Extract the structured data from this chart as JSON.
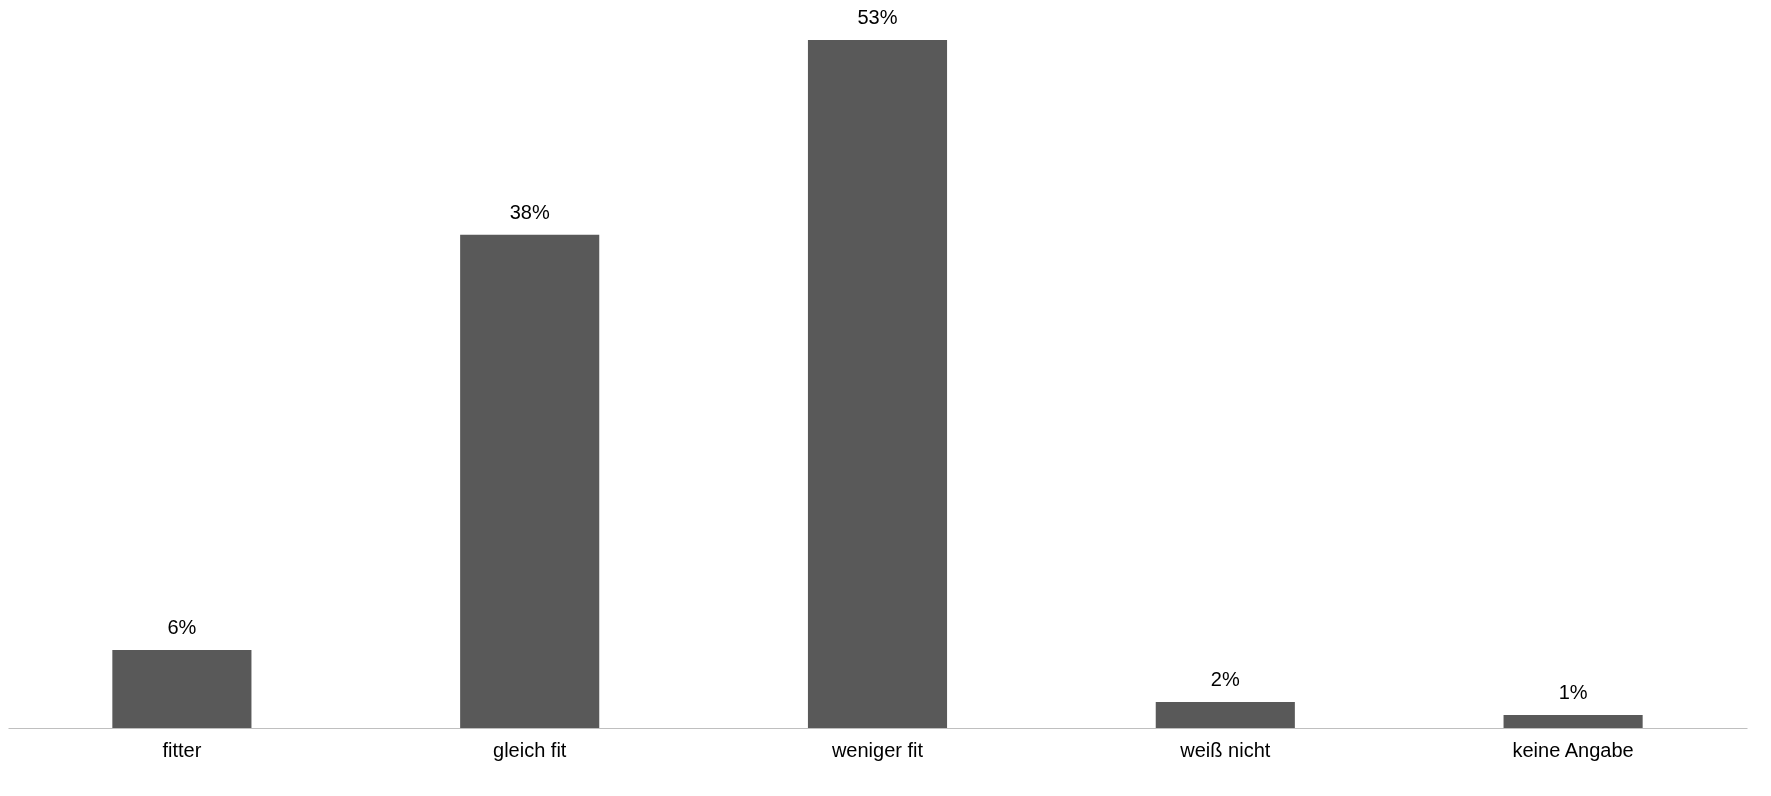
{
  "chart_data": {
    "type": "bar",
    "categories": [
      "fitter",
      "gleich fit",
      "weniger fit",
      "weiß nicht",
      "keine Angabe"
    ],
    "values": [
      6,
      38,
      53,
      2,
      1
    ],
    "value_labels": [
      "6%",
      "38%",
      "53%",
      "2%",
      "1%"
    ],
    "color": "#595959",
    "grid": false
  }
}
